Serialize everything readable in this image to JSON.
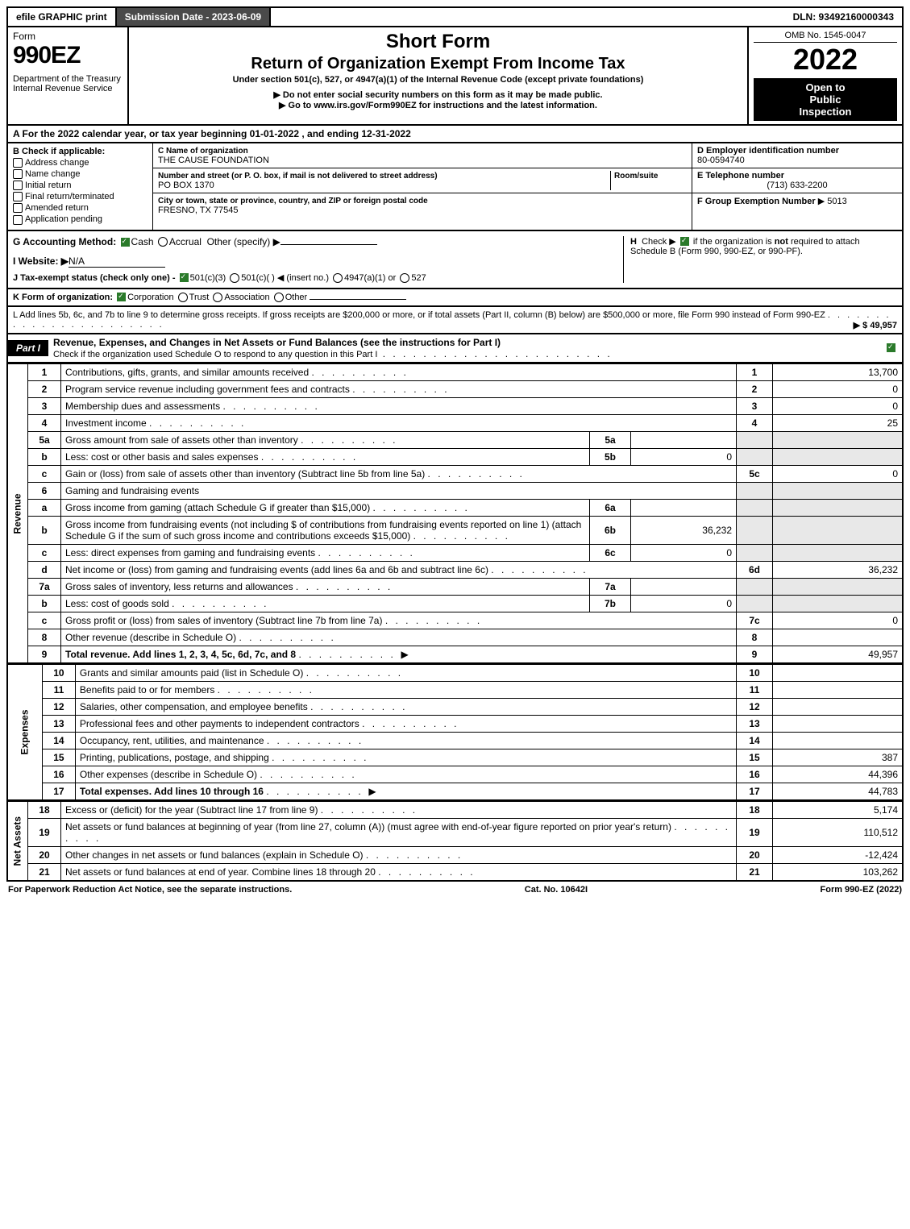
{
  "topbar": {
    "efile": "efile GRAPHIC print",
    "submission": "Submission Date - 2023-06-09",
    "dln": "DLN: 93492160000343"
  },
  "header": {
    "form_word": "Form",
    "form_number": "990EZ",
    "dept": "Department of the Treasury\nInternal Revenue Service",
    "short_form": "Short Form",
    "return_title": "Return of Organization Exempt From Income Tax",
    "under_section": "Under section 501(c), 527, or 4947(a)(1) of the Internal Revenue Code (except private foundations)",
    "ssn_warn": "▶ Do not enter social security numbers on this form as it may be made public.",
    "goto": "▶ Go to www.irs.gov/Form990EZ for instructions and the latest information.",
    "omb": "OMB No. 1545-0047",
    "year": "2022",
    "open": "Open to",
    "public": "Public",
    "inspection": "Inspection"
  },
  "line_A": "A  For the 2022 calendar year, or tax year beginning 01-01-2022 , and ending 12-31-2022",
  "section_B": {
    "label": "B  Check if applicable:",
    "items": [
      "Address change",
      "Name change",
      "Initial return",
      "Final return/terminated",
      "Amended return",
      "Application pending"
    ]
  },
  "section_C": {
    "name_label": "C Name of organization",
    "name": "THE CAUSE FOUNDATION",
    "street_label": "Number and street (or P. O. box, if mail is not delivered to street address)",
    "room_label": "Room/suite",
    "street": "PO BOX 1370",
    "city_label": "City or town, state or province, country, and ZIP or foreign postal code",
    "city": "FRESNO, TX  77545"
  },
  "section_right": {
    "D_label": "D Employer identification number",
    "D_val": "80-0594740",
    "E_label": "E Telephone number",
    "E_val": "(713) 633-2200",
    "F_label": "F Group Exemption Number",
    "F_val": "▶ 5013"
  },
  "line_G": "G Accounting Method:",
  "G_opts": {
    "cash": "Cash",
    "accrual": "Accrual",
    "other": "Other (specify) ▶"
  },
  "line_H": "H   Check ▶   if the organization is not required to attach Schedule B (Form 990, 990-EZ, or 990-PF).",
  "line_I": "I Website: ▶",
  "I_val": "N/A",
  "line_J_pre": "J Tax-exempt status (check only one) -",
  "J_opts": {
    "a": "501(c)(3)",
    "b": "501(c)(  ) ◀ (insert no.)",
    "c": "4947(a)(1) or",
    "d": "527"
  },
  "line_K": "K Form of organization:",
  "K_opts": {
    "corp": "Corporation",
    "trust": "Trust",
    "assoc": "Association",
    "other": "Other"
  },
  "line_L": "L Add lines 5b, 6c, and 7b to line 9 to determine gross receipts. If gross receipts are $200,000 or more, or if total assets (Part II, column (B) below) are $500,000 or more, file Form 990 instead of Form 990-EZ",
  "L_amt": "▶ $ 49,957",
  "part1": {
    "label": "Part I",
    "title": "Revenue, Expenses, and Changes in Net Assets or Fund Balances (see the instructions for Part I)",
    "check_note": "Check if the organization used Schedule O to respond to any question in this Part I"
  },
  "sections": {
    "revenue": "Revenue",
    "expenses": "Expenses",
    "netassets": "Net Assets"
  },
  "rows": [
    {
      "n": "1",
      "d": "Contributions, gifts, grants, and similar amounts received",
      "ln": "1",
      "amt": "13,700"
    },
    {
      "n": "2",
      "d": "Program service revenue including government fees and contracts",
      "ln": "2",
      "amt": "0"
    },
    {
      "n": "3",
      "d": "Membership dues and assessments",
      "ln": "3",
      "amt": "0"
    },
    {
      "n": "4",
      "d": "Investment income",
      "ln": "4",
      "amt": "25"
    },
    {
      "n": "5a",
      "d": "Gross amount from sale of assets other than inventory",
      "sub": "5a",
      "subamt": ""
    },
    {
      "n": "b",
      "d": "Less: cost or other basis and sales expenses",
      "sub": "5b",
      "subamt": "0"
    },
    {
      "n": "c",
      "d": "Gain or (loss) from sale of assets other than inventory (Subtract line 5b from line 5a)",
      "ln": "5c",
      "amt": "0"
    },
    {
      "n": "6",
      "d": "Gaming and fundraising events",
      "shade_right": true
    },
    {
      "n": "a",
      "d": "Gross income from gaming (attach Schedule G if greater than $15,000)",
      "sub": "6a",
      "subamt": "",
      "shade_right": true
    },
    {
      "n": "b",
      "d": "Gross income from fundraising events (not including $                    of contributions from fundraising events reported on line 1) (attach Schedule G if the sum of such gross income and contributions exceeds $15,000)",
      "sub": "6b",
      "subamt": "36,232",
      "shade_right": true
    },
    {
      "n": "c",
      "d": "Less: direct expenses from gaming and fundraising events",
      "sub": "6c",
      "subamt": "0",
      "shade_right": true
    },
    {
      "n": "d",
      "d": "Net income or (loss) from gaming and fundraising events (add lines 6a and 6b and subtract line 6c)",
      "ln": "6d",
      "amt": "36,232"
    },
    {
      "n": "7a",
      "d": "Gross sales of inventory, less returns and allowances",
      "sub": "7a",
      "subamt": ""
    },
    {
      "n": "b",
      "d": "Less: cost of goods sold",
      "sub": "7b",
      "subamt": "0"
    },
    {
      "n": "c",
      "d": "Gross profit or (loss) from sales of inventory (Subtract line 7b from line 7a)",
      "ln": "7c",
      "amt": "0"
    },
    {
      "n": "8",
      "d": "Other revenue (describe in Schedule O)",
      "ln": "8",
      "amt": ""
    },
    {
      "n": "9",
      "d": "Total revenue. Add lines 1, 2, 3, 4, 5c, 6d, 7c, and 8",
      "ln": "9",
      "amt": "49,957",
      "bold": true,
      "arrow": true
    }
  ],
  "exp_rows": [
    {
      "n": "10",
      "d": "Grants and similar amounts paid (list in Schedule O)",
      "ln": "10",
      "amt": ""
    },
    {
      "n": "11",
      "d": "Benefits paid to or for members",
      "ln": "11",
      "amt": ""
    },
    {
      "n": "12",
      "d": "Salaries, other compensation, and employee benefits",
      "ln": "12",
      "amt": ""
    },
    {
      "n": "13",
      "d": "Professional fees and other payments to independent contractors",
      "ln": "13",
      "amt": ""
    },
    {
      "n": "14",
      "d": "Occupancy, rent, utilities, and maintenance",
      "ln": "14",
      "amt": ""
    },
    {
      "n": "15",
      "d": "Printing, publications, postage, and shipping",
      "ln": "15",
      "amt": "387"
    },
    {
      "n": "16",
      "d": "Other expenses (describe in Schedule O)",
      "ln": "16",
      "amt": "44,396"
    },
    {
      "n": "17",
      "d": "Total expenses. Add lines 10 through 16",
      "ln": "17",
      "amt": "44,783",
      "bold": true,
      "arrow": true
    }
  ],
  "na_rows": [
    {
      "n": "18",
      "d": "Excess or (deficit) for the year (Subtract line 17 from line 9)",
      "ln": "18",
      "amt": "5,174"
    },
    {
      "n": "19",
      "d": "Net assets or fund balances at beginning of year (from line 27, column (A)) (must agree with end-of-year figure reported on prior year's return)",
      "ln": "19",
      "amt": "110,512"
    },
    {
      "n": "20",
      "d": "Other changes in net assets or fund balances (explain in Schedule O)",
      "ln": "20",
      "amt": "-12,424"
    },
    {
      "n": "21",
      "d": "Net assets or fund balances at end of year. Combine lines 18 through 20",
      "ln": "21",
      "amt": "103,262"
    }
  ],
  "footer": {
    "left": "For Paperwork Reduction Act Notice, see the separate instructions.",
    "mid": "Cat. No. 10642I",
    "right": "Form 990-EZ (2022)"
  },
  "colors": {
    "black": "#000000",
    "darkgray": "#4a4a4a",
    "shade": "#e8e8e8",
    "green": "#2a7a2a"
  }
}
